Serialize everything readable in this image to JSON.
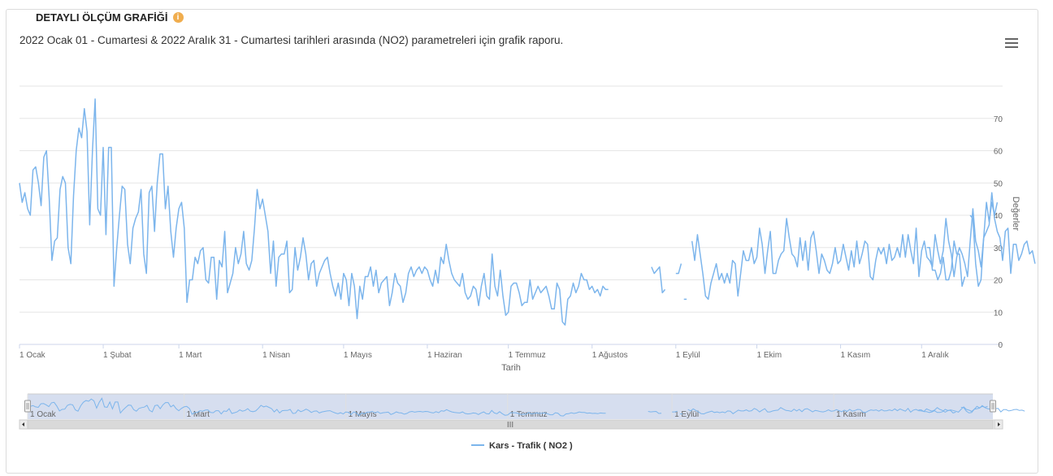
{
  "panel": {
    "title": "DETAYLI ÖLÇÜM GRAFİĞİ",
    "info_icon": "info-icon",
    "info_glyph": "i"
  },
  "subtitle": "2022 Ocak 01 - Cumartesi & 2022 Aralık 31 - Cumartesi tarihleri arasında (NO2) parametreleri için grafik raporu.",
  "menu_icon": "hamburger-menu-icon",
  "colors": {
    "series": "#7cb5ec",
    "grid": "#e6e6e6",
    "navigator_mask": "#ccd6eb"
  },
  "chart_data": {
    "type": "line",
    "xlabel": "Tarih",
    "ylabel": "Değerler",
    "ylim": [
      0,
      80
    ],
    "yticks": [
      0,
      10,
      20,
      30,
      40,
      50,
      60,
      70
    ],
    "xlim": [
      "2022-01-01",
      "2022-12-31"
    ],
    "xticks": [
      {
        "date": "2022-01-01",
        "label": "1 Ocak"
      },
      {
        "date": "2022-02-01",
        "label": "1 Şubat"
      },
      {
        "date": "2022-03-01",
        "label": "1 Mart"
      },
      {
        "date": "2022-04-01",
        "label": "1 Nisan"
      },
      {
        "date": "2022-05-01",
        "label": "1 Mayıs"
      },
      {
        "date": "2022-06-01",
        "label": "1 Haziran"
      },
      {
        "date": "2022-07-01",
        "label": "1 Temmuz"
      },
      {
        "date": "2022-08-01",
        "label": "1 Ağustos"
      },
      {
        "date": "2022-09-01",
        "label": "1 Eylül"
      },
      {
        "date": "2022-10-01",
        "label": "1 Ekim"
      },
      {
        "date": "2022-11-01",
        "label": "1 Kasım"
      },
      {
        "date": "2022-12-01",
        "label": "1 Aralık"
      }
    ],
    "grid": true,
    "legend": "bottom-center",
    "navigator": {
      "labels": [
        {
          "date": "2022-01-01",
          "label": "1 Ocak"
        },
        {
          "date": "2022-03-01",
          "label": "1 Mart"
        },
        {
          "date": "2022-05-01",
          "label": "1 Mayıs"
        },
        {
          "date": "2022-07-01",
          "label": "1 Temmuz"
        },
        {
          "date": "2022-09-01",
          "label": "1 Eylül"
        },
        {
          "date": "2022-11-01",
          "label": "1 Kasım"
        }
      ],
      "scroll_grip": "III"
    },
    "series": [
      {
        "name": "Kars - Trafik ( NO2 )",
        "segments": [
          {
            "start": "2022-01-01",
            "values": [
              50,
              44,
              47,
              42,
              40,
              54,
              55,
              50,
              43,
              58,
              60,
              45,
              26,
              32,
              33,
              48,
              52,
              50,
              30,
              25,
              46,
              60,
              67,
              64,
              73,
              66,
              37,
              60,
              76,
              42,
              40,
              61,
              34,
              61,
              61,
              18,
              30,
              40,
              49,
              48,
              31,
              25,
              36,
              39,
              41,
              48,
              28,
              22,
              47,
              49,
              35,
              50,
              59,
              59,
              42,
              49,
              35,
              27,
              36,
              42,
              44,
              36,
              13,
              20,
              20,
              27,
              25,
              29,
              30,
              20,
              19,
              27,
              27,
              14,
              26,
              24,
              35,
              16,
              19,
              22,
              30,
              25,
              28,
              35,
              25,
              23,
              26,
              36,
              48,
              42,
              45,
              40,
              35,
              22,
              32,
              18,
              27,
              28,
              28,
              32,
              16,
              17,
              30,
              23,
              27,
              33,
              28,
              20,
              25,
              26,
              18,
              22,
              24,
              26,
              27,
              22,
              18,
              15,
              19,
              14,
              22,
              20,
              12,
              22,
              18,
              8,
              18,
              14,
              21,
              21,
              24,
              18,
              23,
              16,
              19,
              20,
              21,
              12,
              16,
              22,
              19,
              18,
              13,
              16,
              22,
              24,
              21,
              23,
              24,
              22,
              24,
              23,
              20,
              18,
              23,
              19,
              27,
              25,
              31,
              26,
              22,
              20,
              19,
              18,
              22,
              16,
              14,
              15,
              18,
              17,
              12,
              18,
              22,
              15,
              14,
              28,
              18,
              15,
              23,
              15,
              9,
              10,
              18,
              19,
              19,
              16,
              12,
              13,
              13,
              20,
              14,
              16,
              18,
              16,
              17,
              18,
              15,
              11,
              11,
              19,
              17,
              7,
              6,
              14,
              15,
              19,
              16,
              18,
              22,
              20,
              20,
              17,
              18,
              16,
              17,
              15,
              18,
              17,
              17
            ]
          },
          {
            "start": "2022-08-23",
            "values": [
              24,
              22,
              23,
              24,
              16,
              17
            ]
          },
          {
            "start": "2022-09-01",
            "values": [
              22,
              22,
              25
            ]
          },
          {
            "start": "2022-09-04",
            "values": [
              14,
              14
            ]
          },
          {
            "start": "2022-09-07",
            "values": [
              32,
              26,
              34,
              28,
              22,
              15,
              14,
              19,
              22,
              25,
              20,
              22,
              19,
              22,
              19,
              26,
              25,
              15,
              22,
              29,
              26,
              26,
              30,
              25,
              27,
              36,
              31,
              22,
              29,
              35,
              22,
              22,
              26,
              28,
              29,
              39,
              33,
              28,
              27,
              24,
              33,
              26,
              32,
              23,
              33,
              35,
              29,
              22,
              28,
              26,
              23,
              22,
              25,
              30,
              25,
              26,
              31,
              27,
              23,
              29,
              24,
              32,
              25,
              28,
              32,
              31,
              21,
              20,
              26,
              30,
              28,
              30,
              25,
              31,
              26,
              27,
              30,
              27,
              34,
              27,
              34,
              29,
              25,
              36,
              21,
              29,
              32,
              27,
              26,
              24,
              34,
              29,
              25,
              29,
              39,
              32,
              28,
              21,
              27,
              30,
              28,
              25,
              21,
              32,
              42,
              32,
              29,
              24,
              33,
              35,
              37,
              47,
              39,
              35,
              33,
              26,
              35,
              36,
              22,
              31,
              31,
              26,
              28,
              31,
              32,
              28,
              29,
              25
            ]
          },
          {
            "start": "2022-12-03",
            "values": [
              30,
              30,
              23,
              23,
              20,
              22,
              27,
              20,
              20,
              23,
              32,
              28,
              28,
              18,
              21
            ]
          },
          {
            "start": "2022-12-19",
            "values": [
              40,
              39,
              25,
              18,
              20,
              33,
              44,
              38,
              44,
              40,
              44
            ]
          }
        ]
      }
    ]
  }
}
